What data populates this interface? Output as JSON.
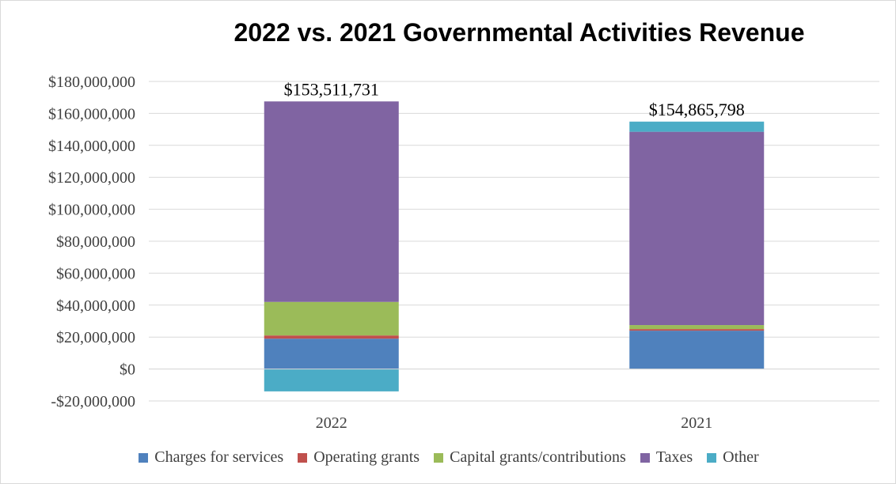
{
  "chart_data": {
    "type": "bar",
    "stacked": true,
    "title": "2022 vs. 2021 Governmental Activities Revenue",
    "categories": [
      "2022",
      "2021"
    ],
    "series": [
      {
        "name": "Charges for services",
        "color": "#4f81bd",
        "values": [
          19000000,
          24000000
        ]
      },
      {
        "name": "Operating grants",
        "color": "#c0504d",
        "values": [
          2000000,
          1000000
        ]
      },
      {
        "name": "Capital grants/contributions",
        "color": "#9bbb59",
        "values": [
          21000000,
          2500000
        ]
      },
      {
        "name": "Taxes",
        "color": "#8064a2",
        "values": [
          125500000,
          121000000
        ]
      },
      {
        "name": "Other",
        "color": "#4bacc6",
        "values": [
          -14000000,
          6365798
        ]
      }
    ],
    "totals": [
      "$153,511,731",
      "$154,865,798"
    ],
    "ylim": [
      -20000000,
      180000000
    ],
    "yticks": [
      -20000000,
      0,
      20000000,
      40000000,
      60000000,
      80000000,
      100000000,
      120000000,
      140000000,
      160000000,
      180000000
    ],
    "ytick_labels": [
      "-$20,000,000",
      "$0",
      "$20,000,000",
      "$40,000,000",
      "$60,000,000",
      "$80,000,000",
      "$100,000,000",
      "$120,000,000",
      "$140,000,000",
      "$160,000,000",
      "$180,000,000"
    ],
    "xlabel": "",
    "ylabel": "",
    "grid": true,
    "legend_position": "bottom"
  }
}
